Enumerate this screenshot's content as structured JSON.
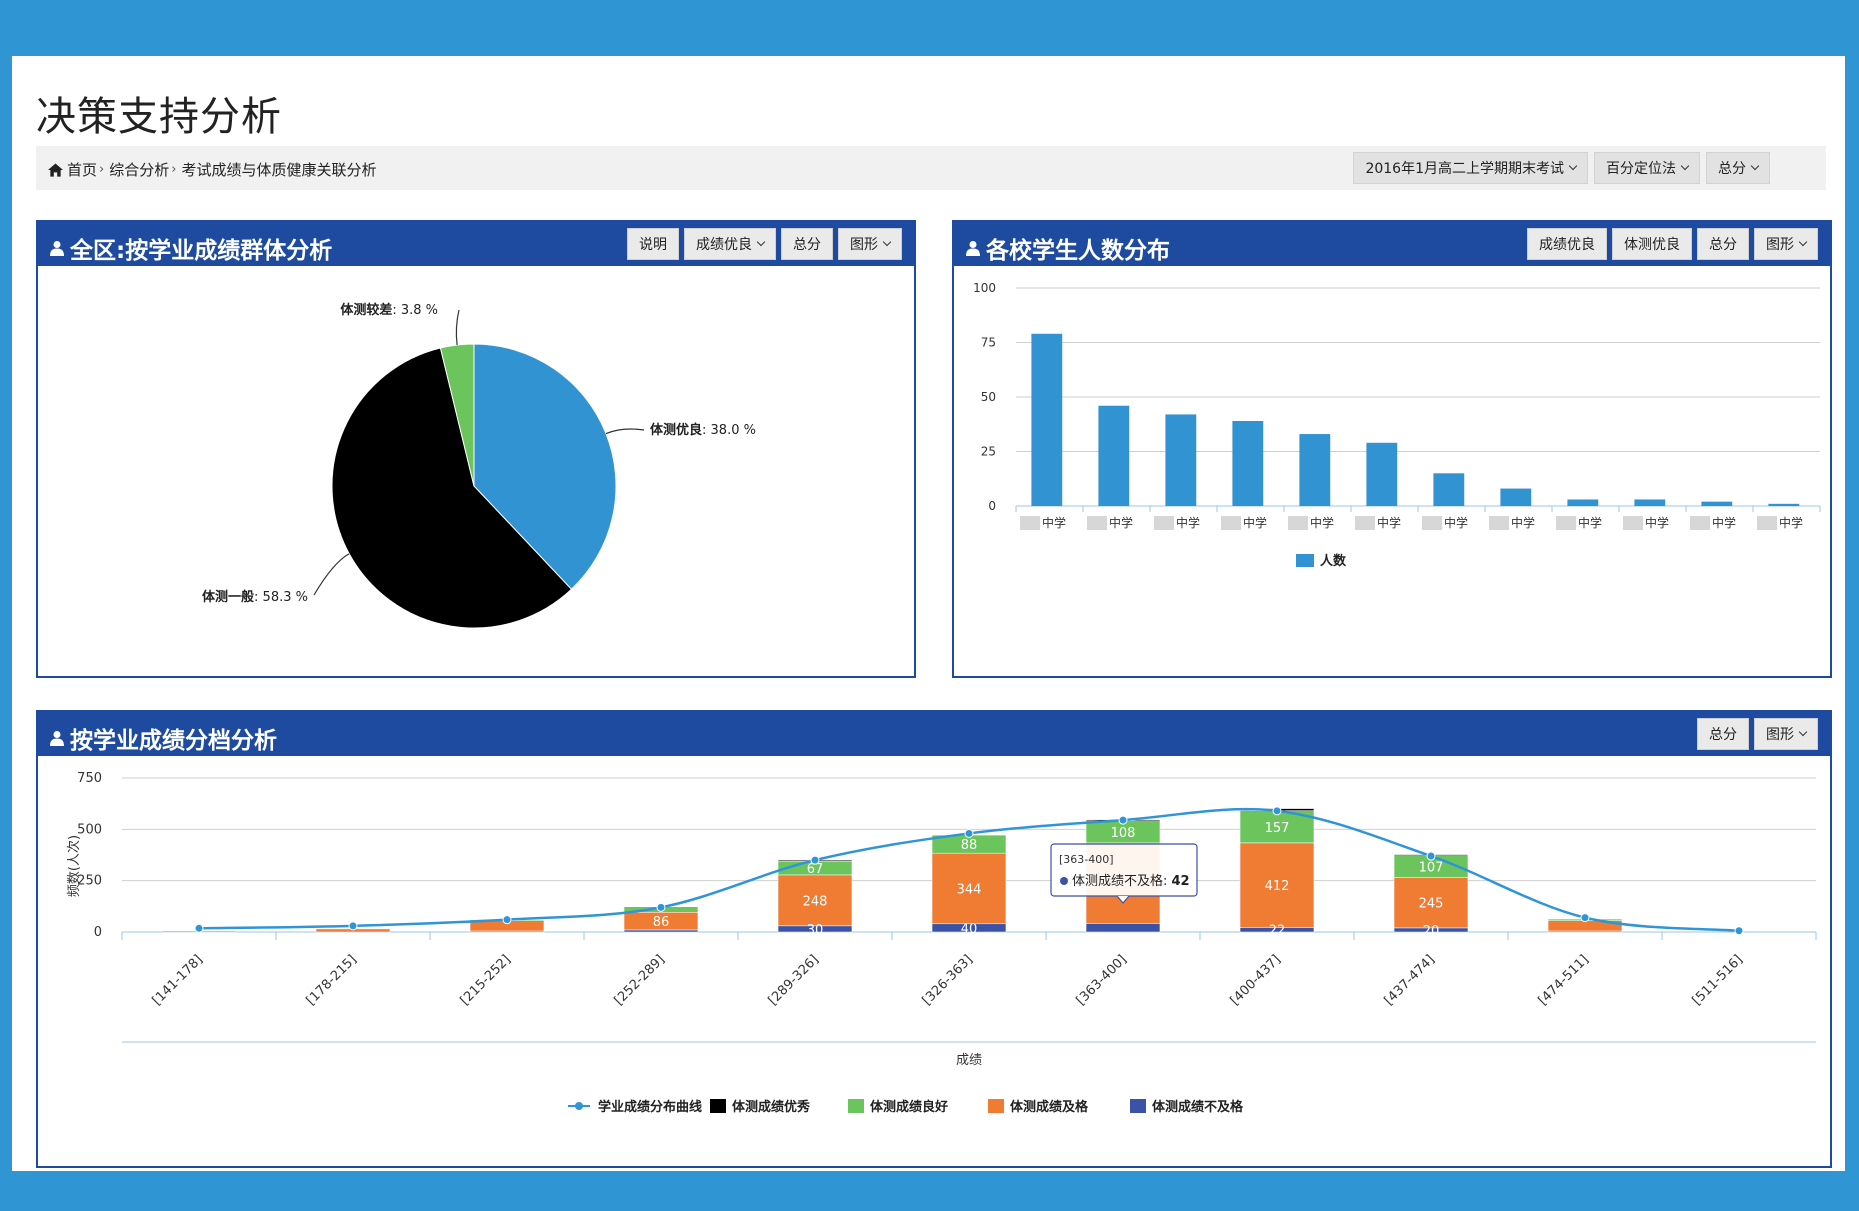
{
  "page": {
    "title": "决策支持分析"
  },
  "breadcrumb": {
    "home": "首页",
    "level2": "综合分析",
    "level3": "考试成绩与体质健康关联分析",
    "sep": "›"
  },
  "filters": {
    "exam": "2016年1月高二上学期期末考试",
    "method": "百分定位法",
    "score": "总分"
  },
  "panel_pie": {
    "title": "全区:按学业成绩群体分析",
    "buttons": [
      "说明",
      "成绩优良",
      "总分",
      "图形"
    ]
  },
  "panel_bar": {
    "title": "各校学生人数分布",
    "buttons": [
      "成绩优良",
      "体测优良",
      "总分",
      "图形"
    ]
  },
  "panel_grade": {
    "title": "按学业成绩分档分析",
    "buttons": [
      "总分",
      "图形"
    ]
  },
  "colors": {
    "frame": "#3095d3",
    "panel_header": "#1e4aa0",
    "blue": "#3293d3",
    "black": "#000000",
    "green": "#6cc45c",
    "orange": "#f07b33",
    "navy": "#3c52a6"
  },
  "chart_data": [
    {
      "type": "pie",
      "slices": [
        {
          "label": "体测优良",
          "value": 38.0,
          "text": "38.0 %",
          "color": "#3293d3"
        },
        {
          "label": "体测一般",
          "value": 58.3,
          "text": "58.3 %",
          "color": "#000000"
        },
        {
          "label": "体测较差",
          "value": 3.8,
          "text": "3.8 %",
          "color": "#6cc45c"
        }
      ]
    },
    {
      "type": "bar",
      "categories": [
        "中学",
        "中学",
        "中学",
        "中学",
        "中学",
        "中学",
        "中学",
        "中学",
        "中学",
        "中学",
        "中学",
        "中学"
      ],
      "series": [
        {
          "name": "人数",
          "values": [
            79,
            46,
            42,
            39,
            33,
            29,
            15,
            8,
            3,
            3,
            2,
            1
          ],
          "color": "#3293d3"
        }
      ],
      "ylim": [
        0,
        100
      ],
      "yticks": [
        0,
        25,
        50,
        75,
        100
      ],
      "legend": "bottom"
    },
    {
      "type": "bar",
      "stacked": true,
      "categories": [
        "[141-178]",
        "[178-215]",
        "[215-252]",
        "[252-289]",
        "[289-326]",
        "[326-363]",
        "[363-400]",
        "[400-437]",
        "[437-474]",
        "[474-511]",
        "[511-516]"
      ],
      "xlabel": "成绩",
      "ylabel": "频数(人次)",
      "ylim": [
        0,
        750
      ],
      "yticks": [
        0,
        250,
        500,
        750
      ],
      "legend": "bottom",
      "series": [
        {
          "name": "学业成绩分布曲线",
          "type": "line",
          "color": "#2f95d6",
          "values": [
            18,
            30,
            60,
            120,
            350,
            480,
            545,
            590,
            370,
            70,
            6
          ]
        },
        {
          "name": "体测成绩优秀",
          "color": "#000000",
          "values": [
            0,
            0,
            0,
            0,
            5,
            0,
            5,
            10,
            5,
            0,
            0
          ]
        },
        {
          "name": "体测成绩良好",
          "color": "#6cc45c",
          "values": [
            0,
            0,
            5,
            27,
            67,
            88,
            108,
            157,
            107,
            8,
            0
          ]
        },
        {
          "name": "体测成绩及格",
          "color": "#f07b33",
          "values": [
            5,
            15,
            50,
            86,
            248,
            344,
            392,
            412,
            245,
            50,
            0
          ]
        },
        {
          "name": "体测成绩不及格",
          "color": "#3c52a6",
          "values": [
            0,
            0,
            5,
            10,
            30,
            40,
            42,
            22,
            20,
            5,
            0
          ]
        }
      ],
      "bar_labels": [
        {
          "i": 3,
          "series": "体测成绩及格",
          "text": "86"
        },
        {
          "i": 4,
          "series": "体测成绩良好",
          "text": "67"
        },
        {
          "i": 4,
          "series": "体测成绩及格",
          "text": "248"
        },
        {
          "i": 4,
          "series": "体测成绩不及格",
          "text": "30"
        },
        {
          "i": 5,
          "series": "体测成绩良好",
          "text": "88"
        },
        {
          "i": 5,
          "series": "体测成绩及格",
          "text": "344"
        },
        {
          "i": 5,
          "series": "体测成绩不及格",
          "text": "40"
        },
        {
          "i": 6,
          "series": "体测成绩良好",
          "text": "108"
        },
        {
          "i": 7,
          "series": "体测成绩良好",
          "text": "157"
        },
        {
          "i": 7,
          "series": "体测成绩及格",
          "text": "412"
        },
        {
          "i": 7,
          "series": "体测成绩不及格",
          "text": "22"
        },
        {
          "i": 8,
          "series": "体测成绩良好",
          "text": "107"
        },
        {
          "i": 8,
          "series": "体测成绩及格",
          "text": "245"
        },
        {
          "i": 8,
          "series": "体测成绩不及格",
          "text": "20"
        }
      ],
      "tooltip": {
        "i": 6,
        "range": "[363-400]",
        "series": "体测成绩不及格",
        "label": "体测成绩不及格",
        "value": "42"
      }
    }
  ]
}
